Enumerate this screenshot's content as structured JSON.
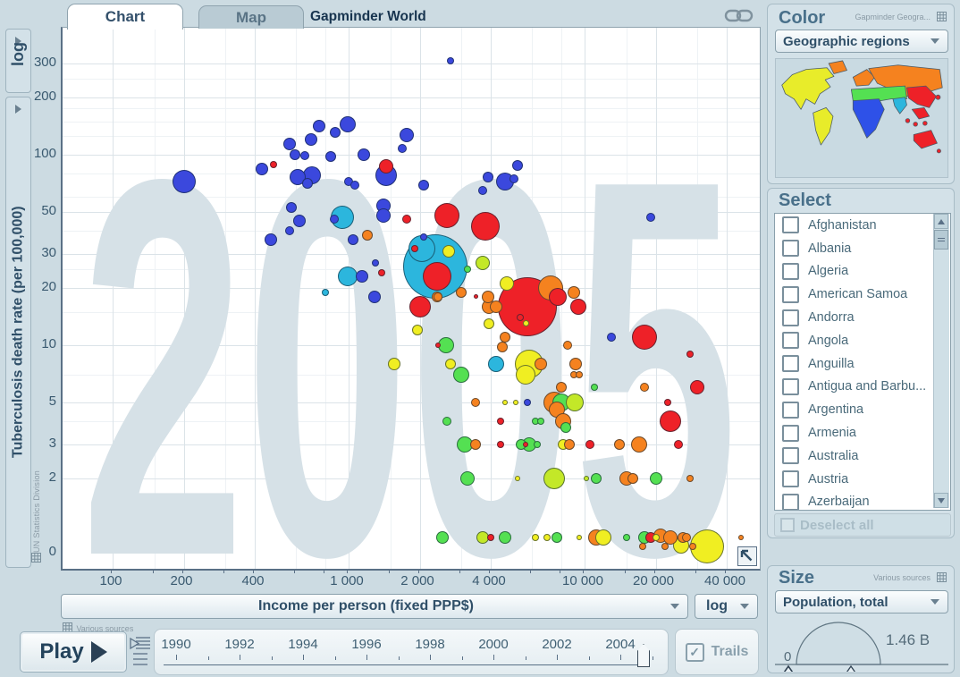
{
  "header": {
    "tabs": [
      {
        "label": "Chart"
      },
      {
        "label": "Map"
      }
    ],
    "title": "Gapminder World"
  },
  "y_axis": {
    "scale_button_label": "log",
    "axis_button_label": "Tuberculosis death rate (per 100,000)",
    "source_note": "UN Statistics Division",
    "tick_labels": [
      "300",
      "200",
      "100",
      "50",
      "30",
      "20",
      "10",
      "5",
      "3",
      "2",
      "0"
    ],
    "tick_values": [
      300,
      200,
      100,
      50,
      30,
      20,
      10,
      5,
      3,
      2,
      0
    ]
  },
  "x_axis": {
    "axis_dropdown_label": "Income per person (fixed PPP$)",
    "scale_dropdown_label": "log",
    "source_note": "Various sources",
    "tick_labels": [
      "100",
      "200",
      "400",
      "1 000",
      "2 000",
      "4 000",
      "10 000",
      "20 000",
      "40 000"
    ],
    "tick_values": [
      100,
      200,
      400,
      1000,
      2000,
      4000,
      10000,
      20000,
      40000
    ]
  },
  "watermark": "2005",
  "color_panel": {
    "heading": "Color",
    "source_note": "Gapminder Geogra...",
    "dropdown_label": "Geographic regions"
  },
  "select_panel": {
    "heading": "Select",
    "countries": [
      "Afghanistan",
      "Albania",
      "Algeria",
      "American Samoa",
      "Andorra",
      "Angola",
      "Anguilla",
      "Antigua and Barbu...",
      "Argentina",
      "Armenia",
      "Australia",
      "Austria",
      "Azerbaijan"
    ],
    "deselect_all_label": "Deselect all"
  },
  "size_panel": {
    "heading": "Size",
    "source_note": "Various sources",
    "dropdown_label": "Population, total",
    "max_label": "1.46 B",
    "min_label": "0"
  },
  "playbar": {
    "play_label": "Play",
    "years": [
      1990,
      1992,
      1994,
      1996,
      1998,
      2000,
      2002,
      2004
    ],
    "trails_label": "Trails"
  },
  "chart_data": {
    "type": "scatter",
    "title": "2005",
    "xlabel": "Income per person (fixed PPP$)",
    "ylabel": "Tuberculosis death rate (per 100,000)",
    "x_scale": "log",
    "y_scale": "log",
    "xlim": [
      60,
      55000
    ],
    "ylim": [
      0,
      450
    ],
    "x_ticks": [
      100,
      200,
      400,
      1000,
      2000,
      4000,
      10000,
      20000,
      40000
    ],
    "y_ticks": [
      0,
      2,
      3,
      5,
      10,
      20,
      30,
      50,
      100,
      200,
      300
    ],
    "x_minor_gridlines": [
      150,
      300,
      600,
      800,
      1500,
      3000,
      6000,
      8000,
      15000,
      30000
    ],
    "y_minor_gridlines": [
      4,
      7,
      15,
      25,
      40,
      60,
      80,
      125,
      150,
      175,
      250
    ],
    "grid": true,
    "colors": {
      "blue": "#3b48dd",
      "cyan": "#2cb6dd",
      "red": "#ee2128",
      "orange": "#f5821f",
      "yellow": "#f0ee22",
      "green": "#54e052",
      "yellowgreen": "#c3e828"
    },
    "point_format": [
      "income_ppp_dollars",
      "tb_deaths_per_100k",
      "radius_px",
      "color"
    ],
    "bubbles": [
      [
        200,
        72,
        13,
        "blue"
      ],
      [
        430,
        84,
        7,
        "blue"
      ],
      [
        560,
        114,
        7,
        "blue"
      ],
      [
        590,
        100,
        6,
        "blue"
      ],
      [
        690,
        120,
        7,
        "blue"
      ],
      [
        650,
        99,
        5,
        "blue"
      ],
      [
        750,
        141,
        7,
        "blue"
      ],
      [
        990,
        145,
        9,
        "blue"
      ],
      [
        880,
        131,
        6,
        "blue"
      ],
      [
        1760,
        127,
        8,
        "blue"
      ],
      [
        1690,
        108,
        5,
        "blue"
      ],
      [
        1160,
        100,
        7,
        "blue"
      ],
      [
        840,
        98,
        6,
        "blue"
      ],
      [
        1440,
        87,
        8,
        "red"
      ],
      [
        1440,
        78,
        12,
        "blue"
      ],
      [
        610,
        76,
        9,
        "blue"
      ],
      [
        700,
        78,
        10,
        "blue"
      ],
      [
        670,
        71,
        6,
        "blue"
      ],
      [
        1000,
        72,
        5,
        "blue"
      ],
      [
        1060,
        69,
        5,
        "blue"
      ],
      [
        2080,
        69,
        6,
        "blue"
      ],
      [
        3700,
        65,
        5,
        "blue"
      ],
      [
        3900,
        76,
        6,
        "blue"
      ],
      [
        4600,
        72,
        10,
        "blue"
      ],
      [
        5200,
        88,
        6,
        "blue"
      ],
      [
        5000,
        75,
        5,
        "blue"
      ],
      [
        2700,
        310,
        4,
        "blue"
      ],
      [
        19000,
        47,
        5,
        "blue"
      ],
      [
        480,
        89,
        4,
        "red"
      ],
      [
        570,
        53,
        6,
        "blue"
      ],
      [
        870,
        46,
        5,
        "blue"
      ],
      [
        940,
        47,
        13,
        "cyan"
      ],
      [
        1410,
        54,
        8,
        "blue"
      ],
      [
        1410,
        48,
        8,
        "blue"
      ],
      [
        620,
        45,
        7,
        "blue"
      ],
      [
        560,
        40,
        5,
        "blue"
      ],
      [
        470,
        36,
        7,
        "blue"
      ],
      [
        1040,
        36,
        6,
        "blue"
      ],
      [
        1200,
        38,
        6,
        "orange"
      ],
      [
        1760,
        46,
        5,
        "red"
      ],
      [
        2050,
        32,
        15,
        "cyan"
      ],
      [
        2080,
        37,
        4,
        "blue"
      ],
      [
        1910,
        32,
        4,
        "red"
      ],
      [
        2600,
        48,
        14,
        "red"
      ],
      [
        3800,
        42,
        16,
        "red"
      ],
      [
        2650,
        31,
        7,
        "yellow"
      ],
      [
        2330,
        26,
        36,
        "cyan"
      ],
      [
        2370,
        23,
        16,
        "red"
      ],
      [
        3700,
        27,
        8,
        "yellowgreen"
      ],
      [
        3200,
        25,
        4,
        "green"
      ],
      [
        990,
        23,
        11,
        "cyan"
      ],
      [
        1140,
        23,
        7,
        "blue"
      ],
      [
        1380,
        24,
        4,
        "red"
      ],
      [
        1300,
        27,
        4,
        "blue"
      ],
      [
        800,
        19,
        4,
        "cyan"
      ],
      [
        1290,
        18,
        7,
        "blue"
      ],
      [
        2400,
        18,
        5,
        "orange"
      ],
      [
        2000,
        16,
        12,
        "red"
      ],
      [
        3900,
        18,
        7,
        "orange"
      ],
      [
        4200,
        16,
        7,
        "orange"
      ],
      [
        4700,
        21,
        8,
        "yellow"
      ],
      [
        5700,
        16,
        33,
        "red"
      ],
      [
        7200,
        20,
        14,
        "orange"
      ],
      [
        7700,
        18,
        10,
        "red"
      ],
      [
        9000,
        19,
        7,
        "orange"
      ],
      [
        9400,
        16,
        9,
        "red"
      ],
      [
        3000,
        19,
        6,
        "orange"
      ],
      [
        2370,
        18,
        6,
        "orange"
      ],
      [
        3450,
        18,
        2.5,
        "red"
      ],
      [
        3940,
        16,
        8,
        "orange"
      ],
      [
        3940,
        13,
        6,
        "yellow"
      ],
      [
        5660,
        13,
        3.5,
        "yellow"
      ],
      [
        5330,
        14,
        4,
        "red"
      ],
      [
        1960,
        12,
        6,
        "yellow"
      ],
      [
        2590,
        10,
        9,
        "green"
      ],
      [
        2390,
        10,
        3,
        "red"
      ],
      [
        4610,
        11,
        6,
        "orange"
      ],
      [
        4490,
        9.8,
        6,
        "orange"
      ],
      [
        8500,
        10,
        5,
        "orange"
      ],
      [
        1560,
        8,
        7,
        "yellow"
      ],
      [
        2700,
        8,
        6,
        "yellow"
      ],
      [
        3000,
        7,
        9,
        "green"
      ],
      [
        4200,
        8,
        9,
        "cyan"
      ],
      [
        5800,
        8,
        16,
        "yellow"
      ],
      [
        5600,
        7,
        11,
        "yellow"
      ],
      [
        6500,
        8,
        7,
        "orange"
      ],
      [
        13000,
        11,
        5,
        "blue"
      ],
      [
        18000,
        11,
        14,
        "red"
      ],
      [
        28000,
        9,
        4,
        "red"
      ],
      [
        9200,
        8,
        7,
        "orange"
      ],
      [
        9000,
        7,
        4,
        "orange"
      ],
      [
        9500,
        7,
        4,
        "orange"
      ],
      [
        11000,
        6,
        4,
        "green"
      ],
      [
        8000,
        6,
        6,
        "orange"
      ],
      [
        30000,
        6,
        8,
        "red"
      ],
      [
        18000,
        6,
        5,
        "orange"
      ],
      [
        3450,
        5,
        5,
        "orange"
      ],
      [
        4610,
        5,
        3,
        "yellow"
      ],
      [
        5120,
        5,
        3,
        "yellow"
      ],
      [
        5700,
        5,
        4,
        "blue"
      ],
      [
        7400,
        5,
        12,
        "orange"
      ],
      [
        7600,
        4.6,
        9,
        "orange"
      ],
      [
        8000,
        5,
        10,
        "green"
      ],
      [
        9100,
        5,
        10,
        "yellowgreen"
      ],
      [
        2610,
        4,
        5,
        "green"
      ],
      [
        4400,
        4,
        4,
        "red"
      ],
      [
        6200,
        4,
        4,
        "green"
      ],
      [
        6500,
        4,
        4,
        "green"
      ],
      [
        8100,
        4,
        9,
        "orange"
      ],
      [
        8300,
        3.7,
        6,
        "green"
      ],
      [
        23000,
        4,
        12,
        "red"
      ],
      [
        22500,
        5,
        4,
        "red"
      ],
      [
        3100,
        3,
        9,
        "green"
      ],
      [
        3450,
        3,
        6,
        "orange"
      ],
      [
        4400,
        3,
        4,
        "red"
      ],
      [
        5400,
        3,
        6,
        "green"
      ],
      [
        5810,
        3,
        8,
        "green"
      ],
      [
        6280,
        3,
        4,
        "green"
      ],
      [
        5600,
        3,
        3,
        "red"
      ],
      [
        8100,
        3,
        6,
        "yellow"
      ],
      [
        8600,
        3,
        6,
        "orange"
      ],
      [
        10500,
        3,
        5,
        "red"
      ],
      [
        14000,
        3,
        6,
        "orange"
      ],
      [
        17000,
        3,
        9,
        "orange"
      ],
      [
        25000,
        3,
        5,
        "red"
      ],
      [
        3200,
        2,
        8,
        "green"
      ],
      [
        5200,
        2,
        3,
        "yellow"
      ],
      [
        7450,
        2,
        12,
        "yellowgreen"
      ],
      [
        10200,
        2,
        3,
        "yellowgreen"
      ],
      [
        11200,
        2,
        6,
        "green"
      ],
      [
        15000,
        2,
        8,
        "orange"
      ],
      [
        16000,
        2,
        6,
        "orange"
      ],
      [
        20000,
        2,
        7,
        "green"
      ],
      [
        28000,
        2,
        4,
        "orange"
      ],
      [
        2500,
        0.5,
        7,
        "green"
      ],
      [
        3700,
        0.5,
        7,
        "yellowgreen"
      ],
      [
        4000,
        0.5,
        4,
        "red"
      ],
      [
        4600,
        0.5,
        7,
        "green"
      ],
      [
        6200,
        0.5,
        4,
        "yellow"
      ],
      [
        6900,
        0.5,
        4,
        "yellow"
      ],
      [
        7600,
        0.5,
        6,
        "green"
      ],
      [
        9500,
        0.5,
        3,
        "yellow"
      ],
      [
        11200,
        0.5,
        9,
        "orange"
      ],
      [
        12000,
        0.5,
        9,
        "yellow"
      ],
      [
        15000,
        0.5,
        4,
        "green"
      ],
      [
        18000,
        0.5,
        7,
        "green"
      ],
      [
        19000,
        0.5,
        6,
        "red"
      ],
      [
        20000,
        0.5,
        4,
        "yellow"
      ],
      [
        21000,
        0.55,
        8,
        "orange"
      ],
      [
        23000,
        0.5,
        8,
        "orange"
      ],
      [
        26000,
        0.5,
        6,
        "orange"
      ],
      [
        27000,
        0.5,
        5,
        "orange"
      ],
      [
        46000,
        0.5,
        3,
        "orange"
      ],
      [
        17600,
        0.2,
        4,
        "orange"
      ],
      [
        22000,
        0.2,
        4,
        "orange"
      ],
      [
        28700,
        0.2,
        4,
        "orange"
      ],
      [
        25600,
        0.25,
        9,
        "yellow"
      ],
      [
        33000,
        0.2,
        19,
        "yellow"
      ]
    ]
  }
}
